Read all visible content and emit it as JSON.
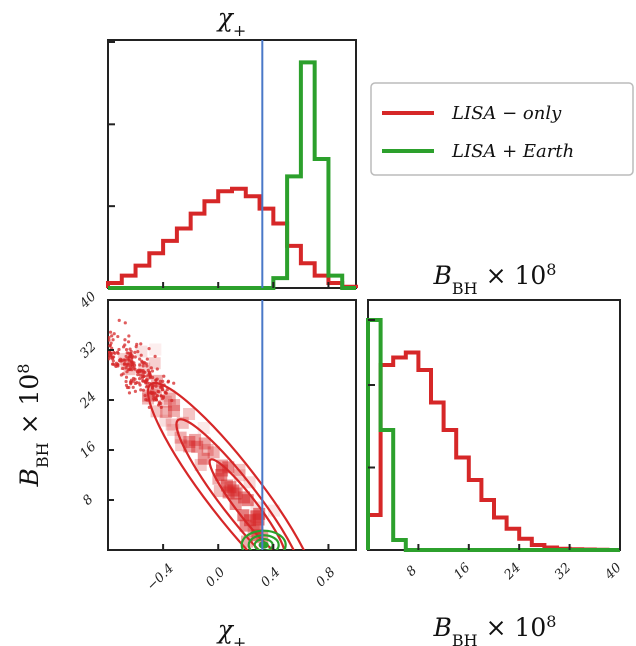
{
  "chart_data": [
    {
      "type": "histogram",
      "panel": "top-left",
      "title": "χ₊",
      "xlim": [
        -0.8,
        1.0
      ],
      "bin_edges": [
        -0.8,
        -0.7,
        -0.6,
        -0.5,
        -0.4,
        -0.3,
        -0.2,
        -0.1,
        0.0,
        0.1,
        0.2,
        0.3,
        0.4,
        0.5,
        0.6,
        0.7,
        0.8,
        0.9,
        1.0
      ],
      "series": [
        {
          "name": "LISA-only",
          "color": "#d62728",
          "values": [
            0.02,
            0.05,
            0.09,
            0.14,
            0.19,
            0.24,
            0.3,
            0.35,
            0.39,
            0.4,
            0.37,
            0.32,
            0.26,
            0.17,
            0.1,
            0.05,
            0.02,
            0.005
          ]
        },
        {
          "name": "LISA+Earth",
          "color": "#2ca02c",
          "values": [
            0,
            0,
            0,
            0,
            0,
            0,
            0,
            0,
            0,
            0,
            0,
            0,
            0.04,
            0.45,
            0.91,
            0.52,
            0.05,
            0
          ]
        }
      ],
      "truth_x": 0.32
    },
    {
      "type": "scatter-contour",
      "panel": "bottom-left",
      "xlabel": "χ₊",
      "ylabel": "B_BH × 10⁸",
      "xlim": [
        -0.8,
        1.0
      ],
      "ylim": [
        0,
        40
      ],
      "x_ticks": [
        "−0.4",
        "0.0",
        "0.4",
        "0.8"
      ],
      "x_tick_values": [
        -0.4,
        0.0,
        0.4,
        0.8
      ],
      "y_ticks": [
        "8",
        "16",
        "24",
        "32",
        "40"
      ],
      "y_tick_values": [
        8,
        16,
        24,
        32,
        40
      ],
      "truth_x": 0.32,
      "ridge_red": [
        [
          -0.8,
          33
        ],
        [
          -0.6,
          29
        ],
        [
          -0.4,
          24
        ],
        [
          -0.2,
          18.5
        ],
        [
          0.0,
          12.5
        ],
        [
          0.2,
          6.5
        ],
        [
          0.35,
          1.8
        ]
      ],
      "ridge_green": [
        [
          0.22,
          2.0
        ],
        [
          0.5,
          0.2
        ]
      ],
      "colors": {
        "red": "#d62728",
        "green": "#2ca02c",
        "truth": "#4a78c8"
      }
    },
    {
      "type": "histogram",
      "panel": "bottom-right",
      "title": "B_BH × 10⁸",
      "xlabel": "B_BH × 10⁸",
      "xlim": [
        0,
        40
      ],
      "x_ticks": [
        "8",
        "16",
        "24",
        "32",
        "40"
      ],
      "x_tick_values": [
        8,
        16,
        24,
        32,
        40
      ],
      "bin_edges": [
        0,
        2,
        4,
        6,
        8,
        10,
        12,
        14,
        16,
        18,
        20,
        22,
        24,
        26,
        28,
        30,
        32,
        34,
        36,
        38,
        40
      ],
      "series": [
        {
          "name": "LISA-only",
          "color": "#d62728",
          "values": [
            0.14,
            0.74,
            0.77,
            0.79,
            0.72,
            0.59,
            0.48,
            0.37,
            0.28,
            0.2,
            0.13,
            0.085,
            0.045,
            0.02,
            0.01,
            0.005,
            0.003,
            0.002,
            0.001,
            0.0
          ]
        },
        {
          "name": "LISA+Earth",
          "color": "#2ca02c",
          "values": [
            0.92,
            0.48,
            0.04,
            0.0,
            0.0,
            0.0,
            0.0,
            0.0,
            0.0,
            0.0,
            0.0,
            0.0,
            0.0,
            0.0,
            0.0,
            0.0,
            0.0,
            0.0,
            0.0,
            0.0
          ]
        }
      ]
    }
  ],
  "legend": {
    "placement": "top-right",
    "entries": [
      {
        "label": "LISA − only",
        "color": "#d62728"
      },
      {
        "label": "LISA + Earth",
        "color": "#2ca02c"
      }
    ]
  }
}
